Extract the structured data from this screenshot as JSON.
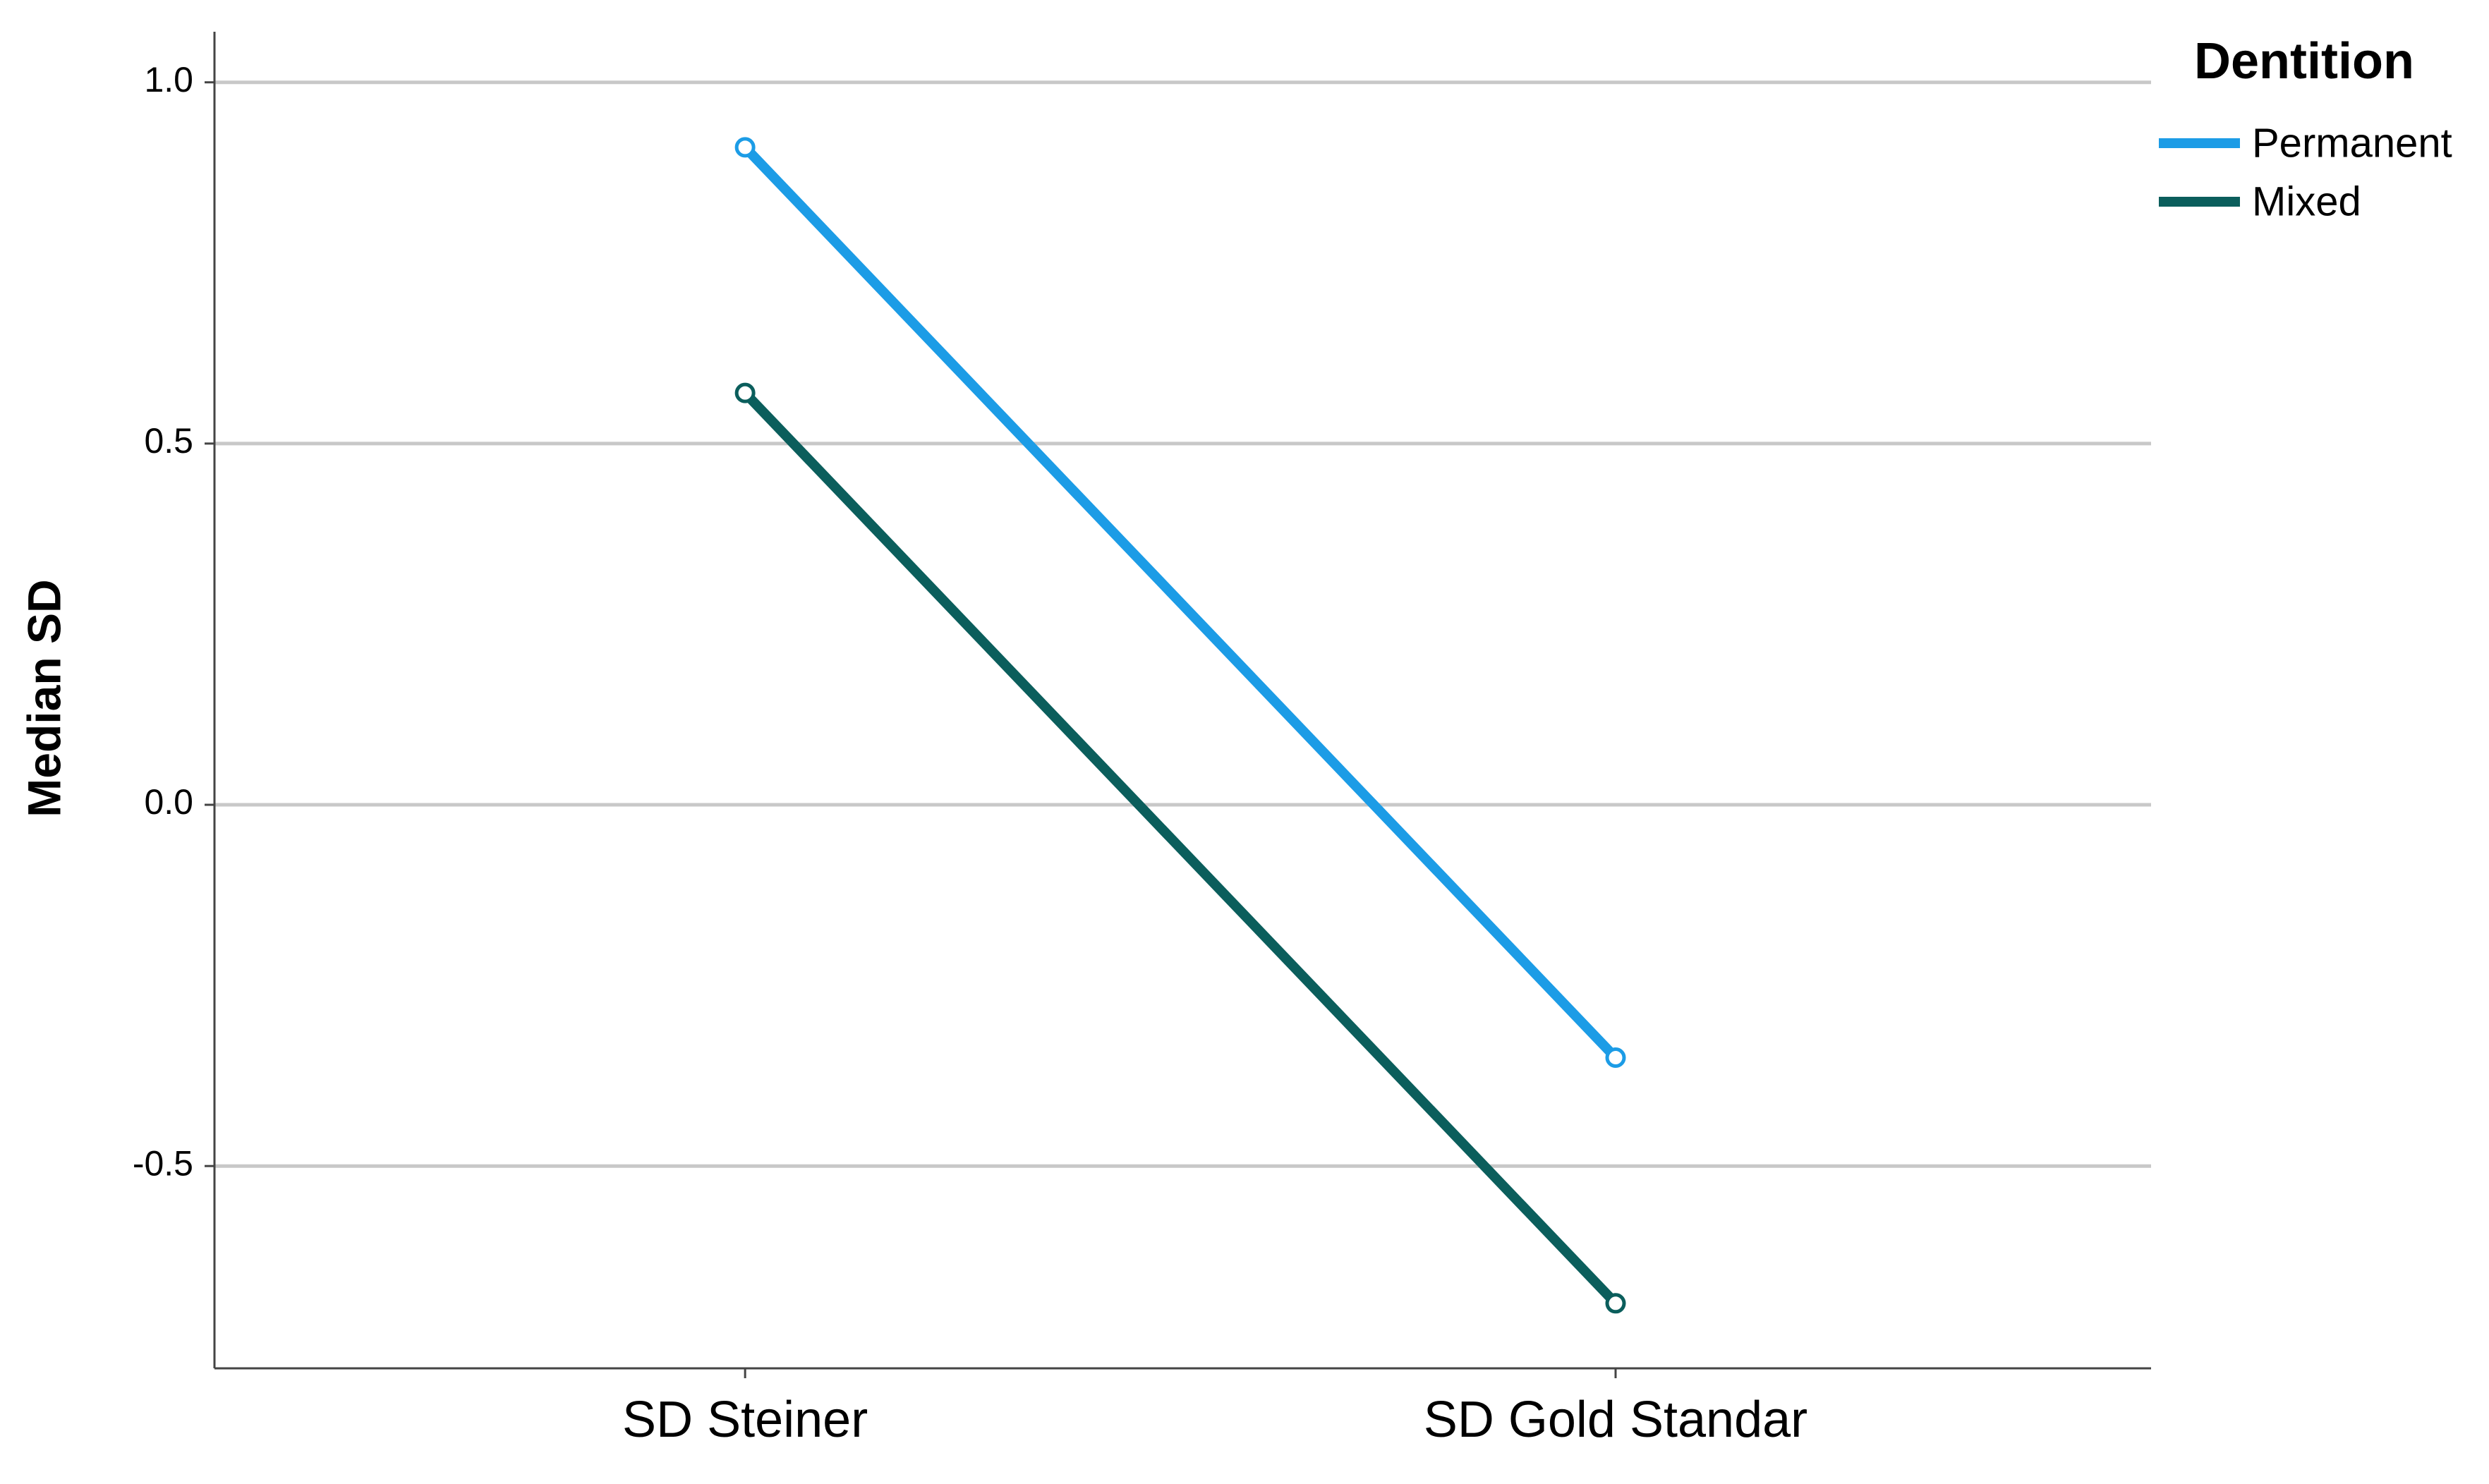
{
  "chart_data": {
    "type": "line",
    "y_label": "Median SD",
    "legend_title": "Dentition",
    "legend_position": "right",
    "categories": [
      "SD Steiner",
      "SD Gold Standar"
    ],
    "series": [
      {
        "name": "Permanent",
        "color": "#1c9ce6",
        "values": [
          0.91,
          -0.35
        ]
      },
      {
        "name": "Mixed",
        "color": "#0b5e5c",
        "values": [
          0.57,
          -0.69
        ]
      }
    ],
    "ylim": [
      -0.78,
      1.07
    ],
    "yticks": [
      {
        "value": -0.5,
        "label": "-0.5"
      },
      {
        "value": 0,
        "label": "0.0"
      },
      {
        "value": 0.5,
        "label": "0.5"
      },
      {
        "value": 1,
        "label": "1.0"
      }
    ],
    "grid": true
  }
}
